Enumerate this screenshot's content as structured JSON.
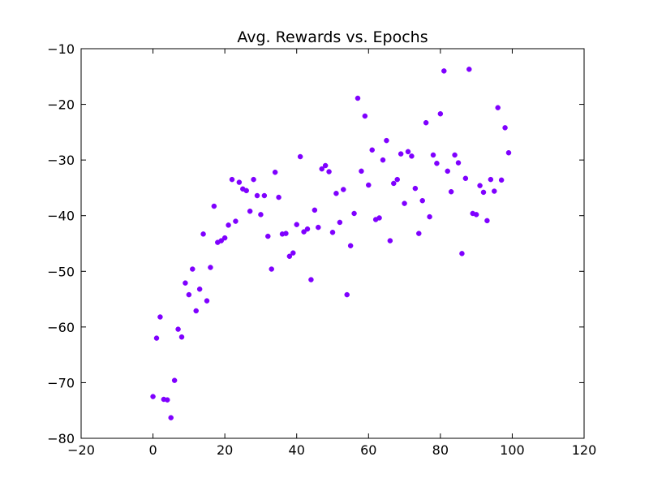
{
  "chart_data": {
    "type": "scatter",
    "title": "Avg. Rewards vs. Epochs",
    "xlabel": "",
    "ylabel": "",
    "xlim": [
      -20,
      120
    ],
    "ylim": [
      -80,
      -10
    ],
    "xticks": [
      -20,
      0,
      20,
      40,
      60,
      80,
      100,
      120
    ],
    "yticks": [
      -10,
      -20,
      -30,
      -40,
      -50,
      -60,
      -70,
      -80
    ],
    "xtick_labels": [
      "−20",
      "0",
      "20",
      "40",
      "60",
      "80",
      "100",
      "120"
    ],
    "ytick_labels": [
      "−10",
      "−20",
      "−30",
      "−40",
      "−50",
      "−60",
      "−70",
      "−80"
    ],
    "grid": false,
    "color": "#7f00ff",
    "series": [
      {
        "x": [
          0,
          1,
          2,
          3,
          4,
          5,
          6,
          7,
          8,
          9,
          10,
          11,
          12,
          13,
          14,
          15,
          16,
          17,
          18,
          19,
          20,
          21,
          22,
          23,
          24,
          25,
          26,
          27,
          28,
          29,
          30,
          31,
          32,
          33,
          34,
          35,
          36,
          37,
          38,
          39,
          40,
          41,
          42,
          43,
          44,
          45,
          46,
          47,
          48,
          49,
          50,
          51,
          52,
          53,
          54,
          55,
          56,
          57,
          58,
          59,
          60,
          61,
          62,
          63,
          64,
          65,
          66,
          67,
          68,
          69,
          70,
          71,
          72,
          73,
          74,
          75,
          76,
          77,
          78,
          79,
          80,
          81,
          82,
          83,
          84,
          85,
          86,
          87,
          88,
          89,
          90,
          91,
          92,
          93,
          94,
          95,
          96,
          97,
          98,
          99
        ],
        "y": [
          -72.5,
          -62,
          -58.2,
          -73,
          -73.1,
          -76.3,
          -69.6,
          -60.4,
          -61.8,
          -52.1,
          -54.2,
          -49.6,
          -57.1,
          -53.2,
          -43.3,
          -55.3,
          -49.3,
          -38.3,
          -44.8,
          -44.5,
          -44,
          -41.7,
          -33.5,
          -41,
          -34,
          -35.2,
          -35.5,
          -39.2,
          -33.5,
          -36.4,
          -39.8,
          -36.4,
          -43.7,
          -49.6,
          -32.2,
          -36.7,
          -43.3,
          -43.2,
          -47.3,
          -46.7,
          -41.6,
          -29.4,
          -42.9,
          -42.4,
          -51.5,
          -39,
          -42.1,
          -31.6,
          -31,
          -32.1,
          -43,
          -36,
          -41.2,
          -35.3,
          -54.2,
          -45.4,
          -39.6,
          -18.9,
          -32,
          -22.1,
          -34.5,
          -28.2,
          -40.7,
          -40.4,
          -30,
          -26.5,
          -44.5,
          -34.2,
          -33.5,
          -28.9,
          -37.8,
          -28.5,
          -29.3,
          -35.1,
          -43.2,
          -37.3,
          -23.3,
          -40.2,
          -29.1,
          -30.6,
          -21.7,
          -14,
          -32,
          -35.7,
          -29.1,
          -30.5,
          -46.8,
          -33.3,
          -13.7,
          -39.6,
          -39.8,
          -34.6,
          -35.8,
          -40.9,
          -33.5,
          -35.6,
          -20.6,
          -33.6,
          -24.2,
          -28.7
        ]
      }
    ]
  }
}
